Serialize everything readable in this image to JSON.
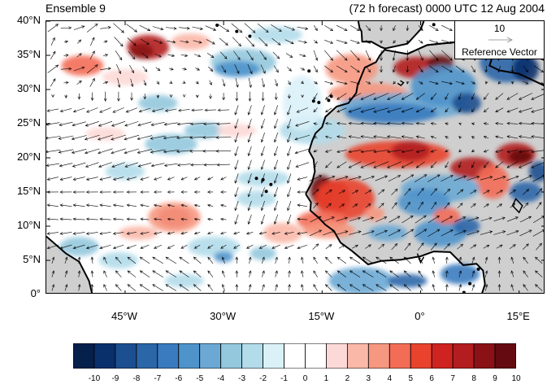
{
  "header": {
    "ensemble_label": "Ensemble 9",
    "forecast_label": "(72 h forecast) 0000 UTC 12 Aug 2004"
  },
  "map": {
    "projection": "lat-lon",
    "lon_range": [
      -57,
      19
    ],
    "lat_range": [
      0,
      40
    ],
    "lat_ticks": [
      {
        "value": 0,
        "label": "0°"
      },
      {
        "value": 5,
        "label": "5°N"
      },
      {
        "value": 10,
        "label": "10°N"
      },
      {
        "value": 15,
        "label": "15°N"
      },
      {
        "value": 20,
        "label": "20°N"
      },
      {
        "value": 25,
        "label": "25°N"
      },
      {
        "value": 30,
        "label": "30°N"
      },
      {
        "value": 35,
        "label": "35°N"
      },
      {
        "value": 40,
        "label": "40°N"
      }
    ],
    "lon_ticks": [
      {
        "value": -45,
        "label": "45°W"
      },
      {
        "value": -30,
        "label": "30°W"
      },
      {
        "value": -15,
        "label": "15°W"
      },
      {
        "value": 0,
        "label": "0°"
      },
      {
        "value": 15,
        "label": "15°E"
      }
    ],
    "land_color": "#cfcfcf",
    "coastline_color": "#000000",
    "vector_color": "#000000"
  },
  "reference_vector": {
    "magnitude": "10",
    "label": "Reference Vector"
  },
  "colorbar": {
    "labels": [
      "-10",
      "-9",
      "-8",
      "-7",
      "-6",
      "-5",
      "-4",
      "-3",
      "-2",
      "-1",
      "0",
      "1",
      "2",
      "3",
      "4",
      "5",
      "6",
      "7",
      "8",
      "9",
      "10"
    ],
    "colors": [
      "#06204c",
      "#0a306c",
      "#1c4f90",
      "#2b66a8",
      "#3a7bbf",
      "#4f93cb",
      "#6ba9d4",
      "#93c8dd",
      "#b3dcea",
      "#daf1f8",
      "#ffffff",
      "#ffffff",
      "#fcd9d6",
      "#f9b8a8",
      "#f6977f",
      "#f36d56",
      "#e9432e",
      "#cf2321",
      "#b31d1f",
      "#8a1217",
      "#650a10"
    ]
  }
}
